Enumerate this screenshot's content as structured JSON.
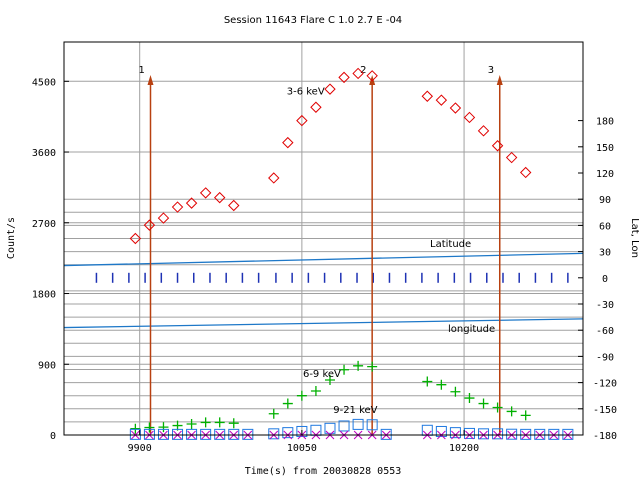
{
  "chart_data": {
    "type": "scatter",
    "title": "Session 11643 Flare  C 1.0  2.7 E -04",
    "xlabel": "Time(s) from 20030828 0553",
    "ylabel": "Count/s",
    "ylabel_right": "Lat, Lon",
    "xlim": [
      9830,
      10310
    ],
    "ylim": [
      0,
      5000
    ],
    "y2lim": [
      -180,
      270
    ],
    "x_ticks": [
      9900,
      10050,
      10200
    ],
    "y_ticks": [
      0,
      900,
      1800,
      2700,
      3600,
      4500
    ],
    "y2_ticks": [
      -180,
      -150,
      -120,
      -90,
      -60,
      -30,
      0,
      30,
      60,
      90,
      120,
      150,
      180
    ],
    "grid_lines_y2": [
      -165,
      -150,
      -135,
      -120,
      -105,
      -90,
      -75,
      -60,
      -45,
      -30,
      -15,
      15,
      30,
      45,
      60,
      75,
      90
    ],
    "series": [
      {
        "name": "3-6 keV",
        "marker": "diamond",
        "color": "#e00000",
        "points": [
          [
            9896,
            2500
          ],
          [
            9909,
            2670
          ],
          [
            9922,
            2760
          ],
          [
            9935,
            2900
          ],
          [
            9948,
            2950
          ],
          [
            9961,
            3080
          ],
          [
            9974,
            3020
          ],
          [
            9987,
            2920
          ],
          [
            10024,
            3270
          ],
          [
            10037,
            3720
          ],
          [
            10050,
            4000
          ],
          [
            10063,
            4170
          ],
          [
            10076,
            4400
          ],
          [
            10089,
            4550
          ],
          [
            10102,
            4600
          ],
          [
            10115,
            4570
          ],
          [
            10166,
            4310
          ],
          [
            10179,
            4260
          ],
          [
            10192,
            4160
          ],
          [
            10205,
            4040
          ],
          [
            10218,
            3870
          ],
          [
            10231,
            3680
          ],
          [
            10244,
            3530
          ],
          [
            10257,
            3340
          ]
        ]
      },
      {
        "name": "6-9 keV",
        "marker": "plus",
        "color": "#00b000",
        "points": [
          [
            9896,
            80
          ],
          [
            9909,
            95
          ],
          [
            9922,
            100
          ],
          [
            9935,
            120
          ],
          [
            9948,
            140
          ],
          [
            9961,
            160
          ],
          [
            9974,
            160
          ],
          [
            9987,
            150
          ],
          [
            10024,
            270
          ],
          [
            10037,
            400
          ],
          [
            10050,
            500
          ],
          [
            10063,
            560
          ],
          [
            10076,
            700
          ],
          [
            10089,
            830
          ],
          [
            10102,
            880
          ],
          [
            10115,
            870
          ],
          [
            10166,
            680
          ],
          [
            10179,
            640
          ],
          [
            10192,
            550
          ],
          [
            10205,
            470
          ],
          [
            10218,
            400
          ],
          [
            10231,
            350
          ],
          [
            10244,
            300
          ],
          [
            10257,
            250
          ]
        ]
      },
      {
        "name": "9-21 keV",
        "marker": "square",
        "color": "#1e78e0",
        "points": [
          [
            9896,
            8
          ],
          [
            9909,
            8
          ],
          [
            9922,
            8
          ],
          [
            9935,
            8
          ],
          [
            9948,
            8
          ],
          [
            9961,
            8
          ],
          [
            9974,
            8
          ],
          [
            9987,
            8
          ],
          [
            10000,
            8
          ],
          [
            10024,
            15
          ],
          [
            10037,
            30
          ],
          [
            10050,
            45
          ],
          [
            10063,
            60
          ],
          [
            10076,
            85
          ],
          [
            10089,
            115
          ],
          [
            10102,
            135
          ],
          [
            10115,
            130
          ],
          [
            10128,
            8
          ],
          [
            10166,
            60
          ],
          [
            10179,
            45
          ],
          [
            10192,
            30
          ],
          [
            10205,
            20
          ],
          [
            10218,
            15
          ],
          [
            10231,
            15
          ],
          [
            10244,
            10
          ],
          [
            10257,
            8
          ],
          [
            10270,
            8
          ],
          [
            10283,
            8
          ],
          [
            10296,
            8
          ]
        ]
      },
      {
        "name": "",
        "marker": "cross",
        "color": "#c000c0",
        "points": [
          [
            9896,
            0
          ],
          [
            9909,
            0
          ],
          [
            9922,
            0
          ],
          [
            9935,
            0
          ],
          [
            9948,
            0
          ],
          [
            9961,
            0
          ],
          [
            9974,
            0
          ],
          [
            9987,
            0
          ],
          [
            10000,
            0
          ],
          [
            10024,
            0
          ],
          [
            10037,
            0
          ],
          [
            10050,
            0
          ],
          [
            10063,
            0
          ],
          [
            10076,
            0
          ],
          [
            10089,
            0
          ],
          [
            10102,
            0
          ],
          [
            10115,
            0
          ],
          [
            10128,
            0
          ],
          [
            10166,
            0
          ],
          [
            10179,
            0
          ],
          [
            10192,
            0
          ],
          [
            10205,
            0
          ],
          [
            10218,
            0
          ],
          [
            10231,
            0
          ],
          [
            10244,
            0
          ],
          [
            10257,
            0
          ],
          [
            10270,
            0
          ],
          [
            10283,
            0
          ],
          [
            10296,
            0
          ]
        ]
      }
    ],
    "latitude": {
      "label": "Latitude",
      "y2": [
        14,
        28
      ],
      "color": "#1e78c8"
    },
    "longitude": {
      "label": "longitude",
      "y2": [
        -57,
        -47
      ],
      "color": "#1e78c8"
    },
    "zero_ticks": {
      "y2": 0,
      "color": "#1e32b4",
      "x": [
        9860,
        9875,
        9890,
        9905,
        9920,
        9935,
        9950,
        9965,
        9980,
        9995,
        10010,
        10026,
        10041,
        10056,
        10071,
        10086,
        10101,
        10116,
        10131,
        10146,
        10161,
        10176,
        10191,
        10206,
        10221,
        10236,
        10251,
        10266,
        10281,
        10296
      ]
    },
    "markers": [
      {
        "label": "1",
        "x": 9910
      },
      {
        "label": "2",
        "x": 10115
      },
      {
        "label": "3",
        "x": 10233
      }
    ],
    "annotations": [
      {
        "text": "3-6 keV",
        "x": 10036,
        "y": 4330
      },
      {
        "text": "6-9 keV",
        "x": 10051,
        "y": 740
      },
      {
        "text": "9-21 keV",
        "x": 10079,
        "y": 280
      }
    ],
    "colors": {
      "arrow": "#b84010",
      "grid": "#a0a0a0"
    }
  }
}
